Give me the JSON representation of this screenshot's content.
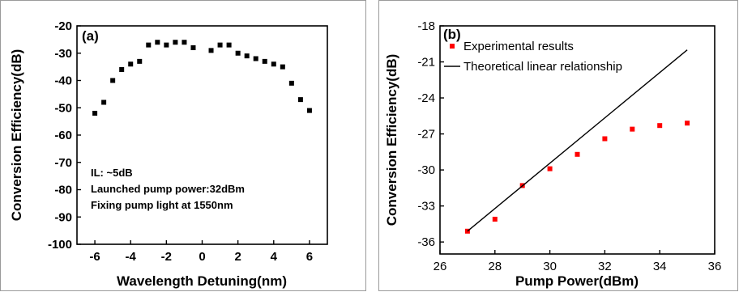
{
  "chart_data": [
    {
      "type": "scatter",
      "panel_label": "(a)",
      "xlabel": "Wavelength Detuning(nm)",
      "ylabel": "Conversion Efficiency(dB)",
      "xlim": [
        -7,
        7
      ],
      "ylim": [
        -100,
        -20
      ],
      "xticks": [
        -6,
        -4,
        -2,
        0,
        2,
        4,
        6
      ],
      "yticks": [
        -100,
        -90,
        -80,
        -70,
        -60,
        -50,
        -40,
        -30,
        -20
      ],
      "grid": false,
      "marker_color": "#000000",
      "annotations": [
        "IL: ~5dB",
        "Launched pump power:32dBm",
        "Fixing pump light at 1550nm"
      ],
      "series": [
        {
          "x": [
            -6,
            -5.5,
            -5,
            -4.5,
            -4,
            -3.5,
            -3,
            -2.5,
            -2,
            -1.5,
            -1,
            -0.5,
            0.5,
            1,
            1.5,
            2,
            2.5,
            3,
            3.5,
            4,
            4.5,
            5,
            5.5,
            6
          ],
          "y": [
            -52,
            -48,
            -40,
            -36,
            -34,
            -33,
            -27,
            -26,
            -27,
            -26,
            -26,
            -28,
            -29,
            -27,
            -27,
            -30,
            -31,
            -32,
            -33,
            -34,
            -35,
            -41,
            -47,
            -51
          ]
        }
      ]
    },
    {
      "type": "scatter",
      "panel_label": "(b)",
      "xlabel": "Pump Power(dBm)",
      "ylabel": "Conversion Efficiency(dB)",
      "xlim": [
        26,
        36
      ],
      "ylim": [
        -37,
        -18
      ],
      "xticks": [
        26,
        28,
        30,
        32,
        34,
        36
      ],
      "yticks": [
        -36,
        -33,
        -30,
        -27,
        -24,
        -21,
        -18
      ],
      "grid": false,
      "legend_position": "top-left",
      "series": [
        {
          "name": "Experimental results",
          "color": "#ff0000",
          "x": [
            27,
            28,
            29,
            30,
            31,
            32,
            33,
            34,
            35
          ],
          "y": [
            -35.1,
            -34.1,
            -31.3,
            -29.9,
            -28.7,
            -27.4,
            -26.6,
            -26.3,
            -26.1
          ]
        },
        {
          "name": "Theoretical linear relationship",
          "color": "#000000",
          "type": "line",
          "x": [
            27,
            35
          ],
          "y": [
            -35.1,
            -20.0
          ]
        }
      ]
    }
  ]
}
